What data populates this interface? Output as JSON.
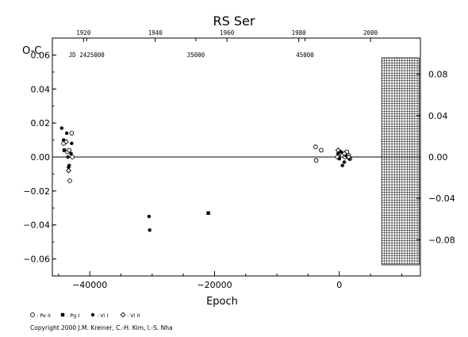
{
  "chart_data": {
    "type": "scatter",
    "title": "RS Ser",
    "ylabel": "O-C",
    "xlabel": "Epoch",
    "xlim": [
      -46000,
      13000
    ],
    "ylim": [
      -0.07,
      0.07
    ],
    "right_ylim": [
      -0.115,
      0.115
    ],
    "grid": false,
    "zero_line": true,
    "x_ticks": [
      -40000,
      -20000,
      0
    ],
    "x_tick_labels": [
      "−40000",
      "−20000",
      "0"
    ],
    "y_ticks": [
      0.06,
      0.04,
      0.02,
      0.0,
      -0.02,
      -0.04,
      -0.06
    ],
    "y_tick_labels": [
      "0.06",
      "0.04",
      "0.02",
      "0.00",
      "−0.02",
      "−0.04",
      "−0.06"
    ],
    "right_ticks": [
      0.08,
      0.04,
      0.0,
      -0.04,
      -0.08
    ],
    "right_tick_labels": [
      "0.08",
      "0.04",
      "0.00",
      "−0.04",
      "−0.08"
    ],
    "top_years": [
      {
        "label": "1920",
        "epoch": -41000
      },
      {
        "label": "1940",
        "epoch": -29500
      },
      {
        "label": "1960",
        "epoch": -18000
      },
      {
        "label": "1980",
        "epoch": -6500
      },
      {
        "label": "2000",
        "epoch": 5000
      }
    ],
    "jd_labels": [
      {
        "label": "JD 2425000",
        "epoch": -40500
      },
      {
        "label": "35000",
        "epoch": -23000
      },
      {
        "label": "45000",
        "epoch": -5500
      }
    ],
    "hatched_region": {
      "from_epoch": 6800,
      "to_epoch": 12800
    },
    "series": [
      {
        "name": "Pe II",
        "marker": "open-circle",
        "points": [
          [
            -44200,
            0.008
          ],
          [
            -43600,
            0.003
          ],
          [
            -43300,
            0.004
          ],
          [
            -43200,
            -0.014
          ],
          [
            -42900,
            0.014
          ],
          [
            -42800,
            0.0
          ],
          [
            -3800,
            0.006
          ],
          [
            -3700,
            -0.002
          ],
          [
            -2900,
            0.004
          ],
          [
            -300,
            0.0
          ],
          [
            100,
            0.002
          ],
          [
            500,
            0.001
          ],
          [
            900,
            0.0
          ],
          [
            1200,
            0.003
          ],
          [
            1500,
            0.001
          ],
          [
            1700,
            -0.001
          ]
        ]
      },
      {
        "name": "Pg I",
        "marker": "filled-square",
        "points": [
          [
            -44100,
            0.004
          ],
          [
            -21000,
            -0.033
          ]
        ]
      },
      {
        "name": "Vi I",
        "marker": "filled-circle",
        "points": [
          [
            -44500,
            0.017
          ],
          [
            -44200,
            0.01
          ],
          [
            -43700,
            0.014
          ],
          [
            -43500,
            0.0
          ],
          [
            -43400,
            -0.006
          ],
          [
            -43300,
            -0.005
          ],
          [
            -43000,
            0.002
          ],
          [
            -42900,
            0.008
          ],
          [
            -30500,
            -0.035
          ],
          [
            -30400,
            -0.043
          ],
          [
            -200,
            0.002
          ],
          [
            0,
            -0.001
          ],
          [
            300,
            0.003
          ],
          [
            500,
            -0.005
          ],
          [
            800,
            -0.003
          ],
          [
            1000,
            0.001
          ],
          [
            1300,
            0.0
          ],
          [
            1600,
            -0.001
          ]
        ]
      },
      {
        "name": "Vi II",
        "marker": "open-diamond",
        "points": [
          [
            -43800,
            0.009
          ],
          [
            -43400,
            -0.008
          ],
          [
            -200,
            0.004
          ],
          [
            800,
            0.002
          ],
          [
            1500,
            0.0
          ]
        ]
      }
    ],
    "legend": {
      "placement": "bottom-left",
      "entries": [
        {
          "marker": "open-circle",
          "label": ": Pe II"
        },
        {
          "marker": "filled-square",
          "label": ": Pg I"
        },
        {
          "marker": "filled-circle",
          "label": ": Vi I"
        },
        {
          "marker": "open-diamond",
          "label": ": Vi II"
        }
      ]
    }
  },
  "copyright": "Copyright 2000 J.M. Kreiner, C.-H. Kim, I.-S. Nha"
}
